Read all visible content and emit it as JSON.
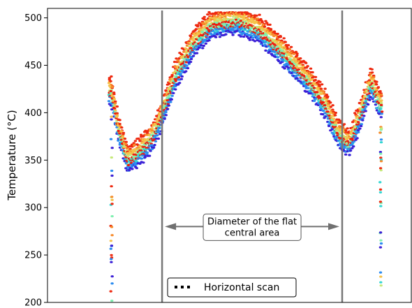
{
  "chart_data": {
    "type": "scatter",
    "title": "",
    "xlabel": "",
    "ylabel": "Temperature (°C)",
    "ylim": [
      200,
      510
    ],
    "yticks": [
      200,
      250,
      300,
      350,
      400,
      450,
      500
    ],
    "xlim": [
      0,
      100
    ],
    "grid": false,
    "colormap": [
      "#3b1fd6",
      "#2b8cf0",
      "#34d6d2",
      "#7ff0b0",
      "#c6e97a",
      "#f5c24a",
      "#f78a2a",
      "#ee2a10"
    ],
    "marker_color_in_profile": "#ee1c0e",
    "profile_shape": {
      "description_points": [
        {
          "x": 17.5,
          "y": 430
        },
        {
          "x": 19.5,
          "y": 390
        },
        {
          "x": 22,
          "y": 358
        },
        {
          "x": 25,
          "y": 365
        },
        {
          "x": 28.5,
          "y": 380
        },
        {
          "x": 31,
          "y": 400
        },
        {
          "x": 35,
          "y": 445
        },
        {
          "x": 40,
          "y": 480
        },
        {
          "x": 45,
          "y": 500
        },
        {
          "x": 52,
          "y": 505
        },
        {
          "x": 58,
          "y": 495
        },
        {
          "x": 65,
          "y": 470
        },
        {
          "x": 72,
          "y": 440
        },
        {
          "x": 76.5,
          "y": 415
        },
        {
          "x": 80,
          "y": 385
        },
        {
          "x": 83,
          "y": 375
        },
        {
          "x": 86,
          "y": 405
        },
        {
          "x": 89,
          "y": 440
        },
        {
          "x": 91.5,
          "y": 415
        }
      ]
    },
    "vertical_lines_x": [
      31.5,
      81.0
    ],
    "annotation": {
      "text_lines": [
        "Diameter of the flat",
        "central area"
      ],
      "arrow_from_x": 31.5,
      "arrow_to_x": 81.0,
      "arrow_y": 280
    },
    "legend": {
      "placement": "bottom-center",
      "entries": [
        {
          "label": "Horizontal scan",
          "style": "dotted"
        }
      ]
    }
  }
}
